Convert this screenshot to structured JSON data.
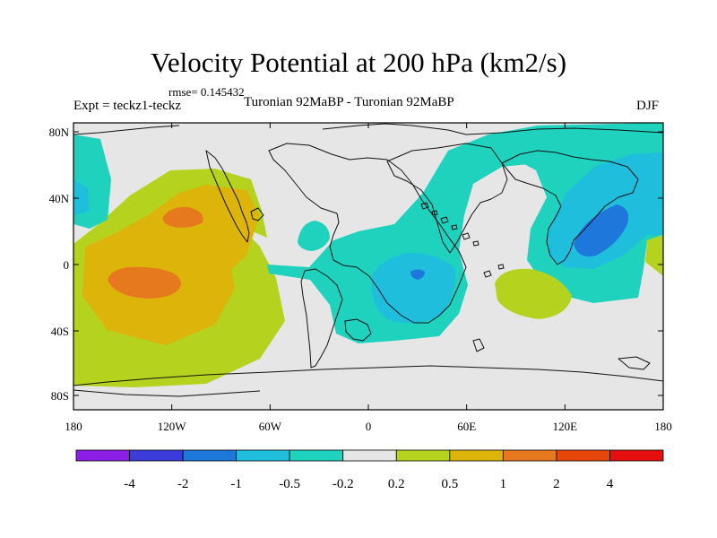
{
  "title": "Velocity Potential at 200 hPa (km2/s)",
  "rmse_label": "rmse= 0.145432",
  "expt_label": "Expt = teckz1-teckz",
  "center_label": "Turonian  92MaBP - Turonian  92MaBP",
  "season_label": "DJF",
  "lat_ticks": [
    "80N",
    "40N",
    "0",
    "40S",
    "80S"
  ],
  "lon_ticks": [
    "180",
    "120W",
    "60W",
    "0",
    "60E",
    "120E",
    "180"
  ],
  "colorbar": {
    "colors": [
      "#8c1ee6",
      "#3c3cdc",
      "#1e78dc",
      "#1ebedc",
      "#1ed2be",
      "#e6e6e6",
      "#b4d21e",
      "#dcb40a",
      "#e6781e",
      "#e6460a",
      "#e60f0f"
    ],
    "labels": [
      "-4",
      "-2",
      "-1",
      "-0.5",
      "-0.2",
      "0.2",
      "0.5",
      "1",
      "2",
      "4"
    ]
  },
  "fill_colors": {
    "neutral": "#e6e6e6",
    "neg_weak": "#1ed2be",
    "neg_mid": "#1ebedc",
    "neg_strong": "#1e78dc",
    "pos_weak": "#b4d21e",
    "pos_mid": "#dcb40a",
    "pos_strong": "#e6781e"
  }
}
